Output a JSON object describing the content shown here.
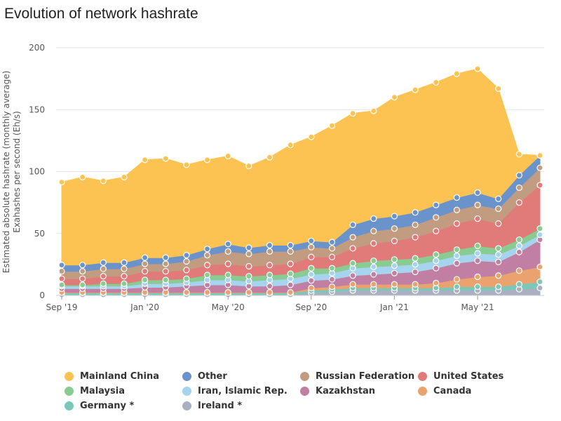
{
  "chart_data": {
    "type": "area",
    "stacked": true,
    "title": "Evolution of network hashrate",
    "ylabel": [
      "Estimated absolute hashrate (monthly average)",
      "Exahashes per second (Eh/s)"
    ],
    "ylim": [
      0,
      200
    ],
    "yticks": [
      "0",
      "50",
      "100",
      "150",
      "200"
    ],
    "xticks": [
      {
        "label": "Sep '19",
        "index": 0
      },
      {
        "label": "Jan '20",
        "index": 4
      },
      {
        "label": "May '20",
        "index": 8
      },
      {
        "label": "Sep '20",
        "index": 12
      },
      {
        "label": "Jan '21",
        "index": 16
      },
      {
        "label": "May '21",
        "index": 20
      }
    ],
    "x": [
      "2019-09",
      "2019-10",
      "2019-11",
      "2019-12",
      "2020-01",
      "2020-02",
      "2020-03",
      "2020-04",
      "2020-05",
      "2020-06",
      "2020-07",
      "2020-08",
      "2020-09",
      "2020-10",
      "2020-11",
      "2020-12",
      "2021-01",
      "2021-02",
      "2021-03",
      "2021-04",
      "2021-05",
      "2021-06",
      "2021-07",
      "2021-08"
    ],
    "grid": true,
    "legend_position": "bottom",
    "series": [
      {
        "name": "Ireland *",
        "color": "#aab0c2",
        "values": [
          0.5,
          0.5,
          0.5,
          0.5,
          0.5,
          0.5,
          0.5,
          0.5,
          0.5,
          0.5,
          0.5,
          0.5,
          2,
          3,
          4,
          4,
          4,
          4,
          4,
          4,
          4,
          4,
          5,
          6
        ]
      },
      {
        "name": "Germany *",
        "color": "#7dc7b9",
        "values": [
          1.5,
          1.5,
          1.5,
          1.5,
          1.5,
          1.5,
          1.5,
          1.5,
          1.5,
          1.5,
          1.5,
          1.5,
          2,
          2,
          2,
          2,
          2,
          2,
          2,
          3,
          3,
          3,
          4,
          5
        ]
      },
      {
        "name": "Canada",
        "color": "#eaa36f",
        "values": [
          0.5,
          0.5,
          0.5,
          0.5,
          0.5,
          0.5,
          0.5,
          0.5,
          0.5,
          0.5,
          0.5,
          0.5,
          2,
          2,
          3,
          3,
          3,
          3,
          4,
          6,
          8,
          9,
          11,
          12
        ]
      },
      {
        "name": "Kazakhstan",
        "color": "#c07fa3",
        "values": [
          3,
          3,
          3,
          3,
          4,
          4,
          5,
          6,
          6,
          5,
          5,
          6,
          6,
          6,
          7,
          8,
          9,
          10,
          12,
          13,
          13,
          11,
          15,
          22
        ]
      },
      {
        "name": "Iran, Islamic Rep.",
        "color": "#a6d4ef",
        "values": [
          2,
          2,
          2,
          2,
          3,
          3,
          3,
          4,
          4,
          4,
          5,
          5,
          5,
          5,
          6,
          6,
          6,
          6,
          6,
          6,
          6,
          6,
          5,
          4
        ]
      },
      {
        "name": "Malaysia",
        "color": "#88cc91",
        "values": [
          1,
          1,
          2,
          2,
          3,
          3,
          3,
          4,
          4,
          4,
          4,
          4,
          5,
          4,
          4,
          5,
          5,
          5,
          5,
          5,
          6,
          5,
          5,
          5
        ]
      },
      {
        "name": "United States",
        "color": "#e07b79",
        "values": [
          5,
          5,
          6,
          6,
          7,
          7,
          7,
          8,
          9,
          8,
          8,
          8,
          9,
          9,
          12,
          14,
          15,
          17,
          19,
          21,
          22,
          20,
          30,
          35
        ]
      },
      {
        "name": "Russian Federation",
        "color": "#c19c80",
        "values": [
          6,
          6,
          6,
          6,
          6,
          6,
          7,
          8,
          10,
          10,
          11,
          10,
          8,
          7,
          9,
          10,
          10,
          10,
          11,
          11,
          11,
          12,
          12,
          14
        ]
      },
      {
        "name": "Other",
        "color": "#6a93cb",
        "values": [
          5,
          5,
          5,
          5,
          5,
          5,
          5,
          5,
          6,
          5,
          5,
          5,
          5,
          5,
          10,
          10,
          10,
          10,
          10,
          10,
          10,
          8,
          10,
          10
        ]
      },
      {
        "name": "Mainland China",
        "color": "#fcc353",
        "values": [
          67,
          71,
          66,
          69,
          79,
          80,
          73,
          72,
          71,
          66,
          71,
          81,
          84,
          94,
          90,
          87,
          96,
          99,
          99,
          100,
          100,
          89,
          17,
          0
        ]
      }
    ]
  }
}
